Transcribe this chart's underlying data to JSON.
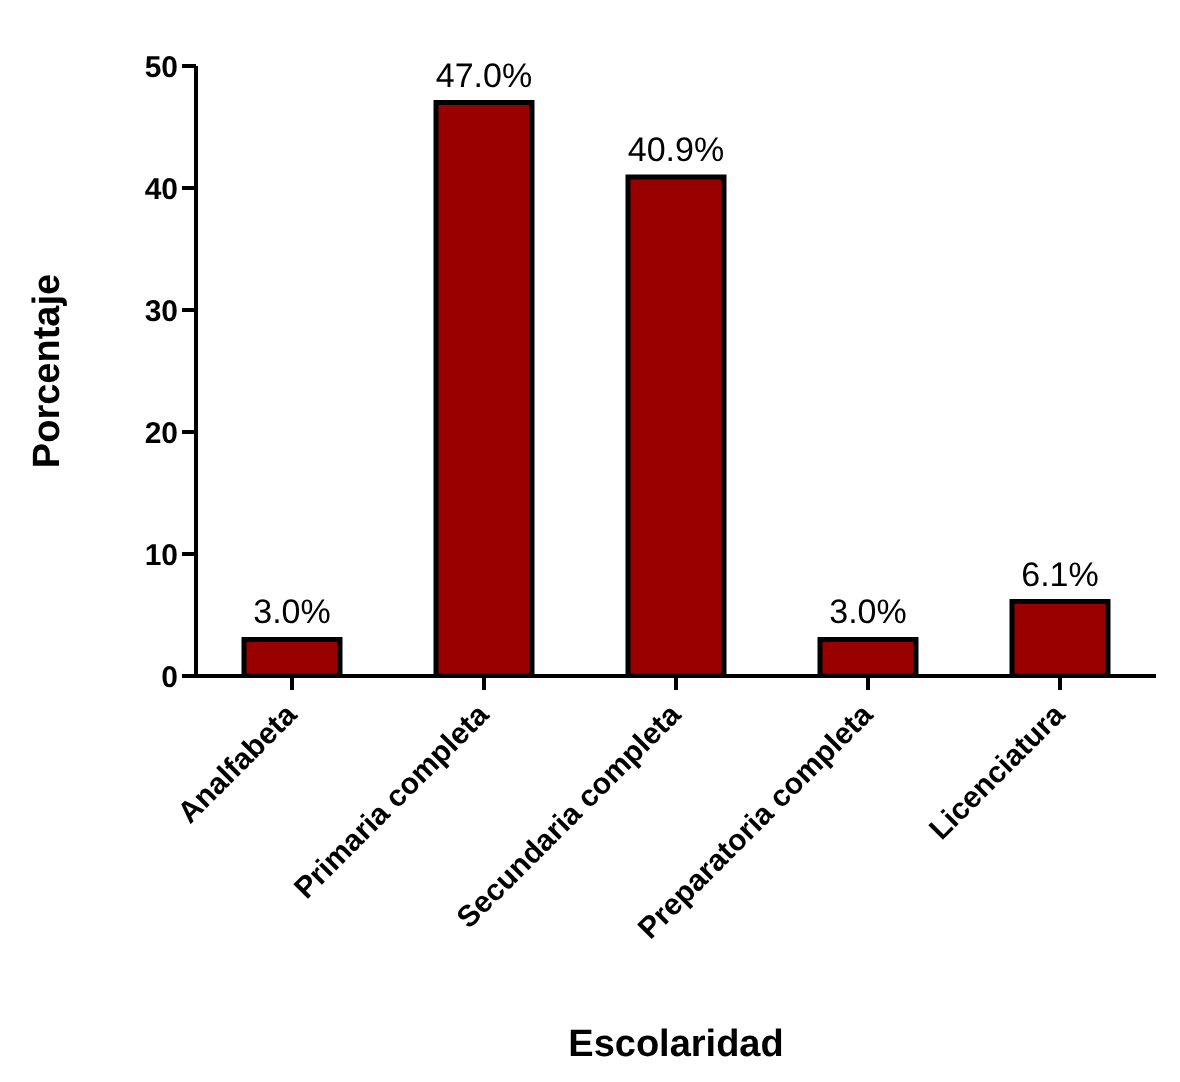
{
  "chart_data": {
    "type": "bar",
    "xlabel": "Escolaridad",
    "ylabel": "Porcentaje",
    "categories": [
      "Analfabeta",
      "Primaria completa",
      "Secundaria completa",
      "Preparatoria completa",
      "Licenciatura"
    ],
    "values": [
      3.0,
      47.0,
      40.9,
      3.0,
      6.1
    ],
    "value_labels": [
      "3.0%",
      "47.0%",
      "40.9%",
      "3.0%",
      "6.1%"
    ],
    "color": "#990000",
    "ylim": [
      0,
      50
    ],
    "yticks": [
      0,
      10,
      20,
      30,
      40,
      50
    ]
  }
}
